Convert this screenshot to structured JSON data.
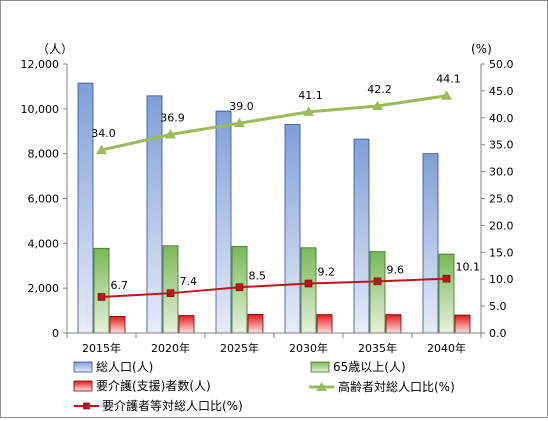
{
  "chart_data": {
    "type": "bar",
    "categories": [
      "2015年",
      "2020年",
      "2025年",
      "2030年",
      "2035年",
      "2040年"
    ],
    "left_axis": {
      "unit": "（人）",
      "ylim": [
        0,
        12000
      ],
      "ticks": [
        "0",
        "2,000",
        "4,000",
        "6,000",
        "8,000",
        "10,000",
        "12,000"
      ]
    },
    "right_axis": {
      "unit": "(%)",
      "ylim": [
        0,
        50
      ],
      "ticks": [
        "0.0",
        "5.0",
        "10.0",
        "15.0",
        "20.0",
        "25.0",
        "30.0",
        "35.0",
        "40.0",
        "45.0",
        "50.0"
      ]
    },
    "series": [
      {
        "name": "総人口(人)",
        "kind": "bar",
        "axis": "left",
        "color": "#8eaadc",
        "values": [
          11150,
          10580,
          9900,
          9300,
          8650,
          8000
        ]
      },
      {
        "name": "65歳以上(人)",
        "kind": "bar",
        "axis": "left",
        "color": "#8cc36e",
        "values": [
          3780,
          3890,
          3860,
          3800,
          3630,
          3520
        ]
      },
      {
        "name": "要介護(支援)者数(人)",
        "kind": "bar",
        "axis": "left",
        "color": "#e8191b",
        "values": [
          740,
          780,
          830,
          820,
          820,
          800
        ]
      },
      {
        "name": "高齢者対総人口比(%)",
        "kind": "line",
        "axis": "right",
        "color": "#9bbb59",
        "marker": "triangle",
        "values": [
          34.0,
          36.9,
          39.0,
          41.1,
          42.2,
          44.1
        ],
        "labels": [
          "34.0",
          "36.9",
          "39.0",
          "41.1",
          "42.2",
          "44.1"
        ]
      },
      {
        "name": "要介護者等対総人口比(%)",
        "kind": "line",
        "axis": "right",
        "color": "#c0141a",
        "marker": "square",
        "values": [
          6.7,
          7.4,
          8.5,
          9.2,
          9.6,
          10.1
        ],
        "labels": [
          "6.7",
          "7.4",
          "8.5",
          "9.2",
          "9.6",
          "10.1"
        ]
      }
    ],
    "grid": false,
    "legend_position": "bottom"
  }
}
